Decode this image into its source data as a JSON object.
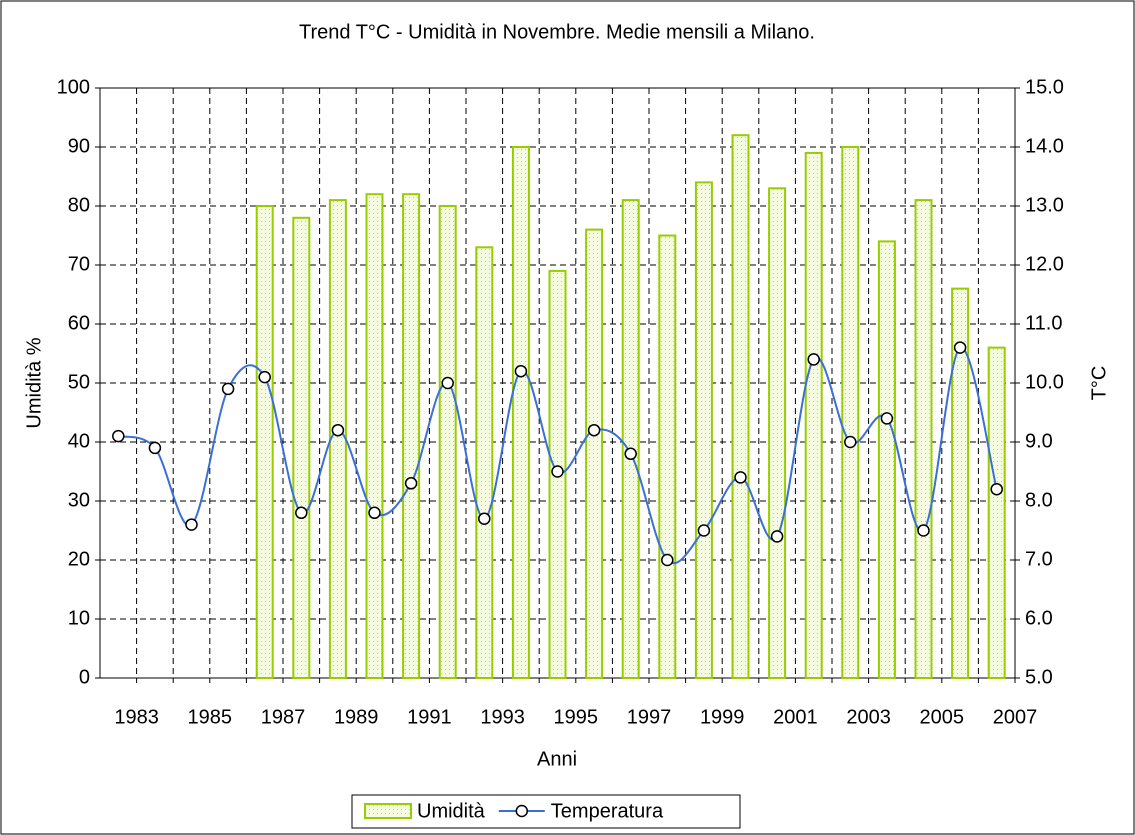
{
  "chart_data": {
    "type": "bar_line",
    "title": "Trend T°C - Umidità in Novembre. Medie mensili a Milano.",
    "x_label": "Anni",
    "y_label": "Umidità %",
    "y2_label": "T°C",
    "categories": [
      "1983",
      null,
      "1985",
      null,
      "1987",
      null,
      "1989",
      null,
      "1991",
      null,
      "1993",
      null,
      "1995",
      null,
      "1997",
      null,
      "1999",
      null,
      "2001",
      null,
      "2003",
      null,
      "2005",
      null,
      "2007"
    ],
    "series": [
      {
        "name": "Umidità",
        "type": "bar",
        "color": "#99cc00",
        "values": [
          null,
          null,
          null,
          null,
          80,
          78,
          81,
          82,
          82,
          80,
          73,
          90,
          69,
          76,
          81,
          75,
          84,
          92,
          83,
          89,
          90,
          74,
          81,
          66,
          56
        ]
      },
      {
        "name": "Temperatura",
        "type": "line",
        "axis": "y2",
        "color": "#3b6fd6",
        "values": [
          9.1,
          8.9,
          7.6,
          9.9,
          10.1,
          7.8,
          9.2,
          7.8,
          8.3,
          10.0,
          7.7,
          10.2,
          8.5,
          9.2,
          8.8,
          7.0,
          7.5,
          8.4,
          7.4,
          10.4,
          9.0,
          9.4,
          7.5,
          10.6,
          8.2
        ]
      }
    ],
    "ylim": [
      0,
      100
    ],
    "yticks": [
      0,
      10,
      20,
      30,
      40,
      50,
      60,
      70,
      80,
      90,
      100
    ],
    "y2lim": [
      5,
      15
    ],
    "y2ticks": [
      {
        "value": 5,
        "label": "5.0"
      },
      {
        "value": 6,
        "label": "6.0"
      },
      {
        "value": 7,
        "label": "7.0"
      },
      {
        "value": 8,
        "label": "8.0"
      },
      {
        "value": 9,
        "label": "9.0"
      },
      {
        "value": 10,
        "label": "10.0"
      },
      {
        "value": 11,
        "label": "11.0"
      },
      {
        "value": 12,
        "label": "12.0"
      },
      {
        "value": 13,
        "label": "13.0"
      },
      {
        "value": 14,
        "label": "14.0"
      },
      {
        "value": 15,
        "label": "15.0"
      }
    ],
    "grid": true,
    "legend": "bottom"
  }
}
